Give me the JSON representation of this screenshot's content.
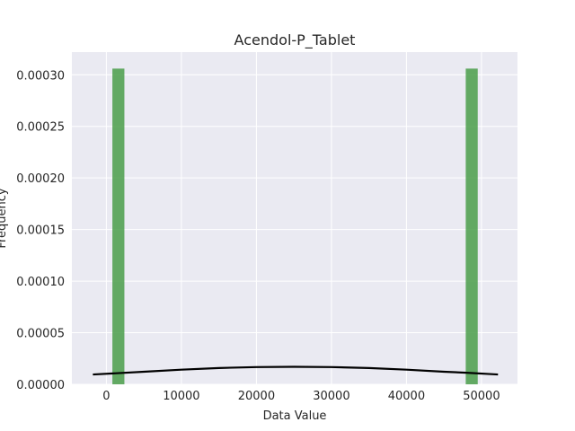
{
  "chart_data": {
    "type": "bar",
    "title": "Acendol-P_Tablet",
    "xlabel": "Data Value",
    "ylabel": "Frequency",
    "xlim": [
      -4600,
      54800
    ],
    "ylim": [
      0,
      0.000322
    ],
    "xticks": [
      0,
      10000,
      20000,
      30000,
      40000,
      50000
    ],
    "yticks": [
      0,
      5e-05,
      0.0001,
      0.00015,
      0.0002,
      0.00025,
      0.0003
    ],
    "xtick_labels": [
      "0",
      "10000",
      "20000",
      "30000",
      "40000",
      "50000"
    ],
    "ytick_labels": [
      "0.00000",
      "0.00005",
      "0.00010",
      "0.00015",
      "0.00020",
      "0.00025",
      "0.00030"
    ],
    "grid": true,
    "legend": "none",
    "background_color": "#eaeaf2",
    "grid_color": "#ffffff",
    "bar_color": "#4a9e4a",
    "line_color": "#000000",
    "bars": [
      {
        "x0": 800,
        "x1": 2400,
        "value": 0.000306
      },
      {
        "x0": 47900,
        "x1": 49500,
        "value": 0.000306
      }
    ],
    "kde_curve": {
      "x": [
        -1800,
        5000,
        10000,
        15000,
        20000,
        25000,
        30000,
        35000,
        40000,
        45000,
        48000,
        52200
      ],
      "y": [
        9.5e-06,
        1.22e-05,
        1.42e-05,
        1.58e-05,
        1.67e-05,
        1.7e-05,
        1.67e-05,
        1.58e-05,
        1.42e-05,
        1.22e-05,
        1.12e-05,
        9.5e-06
      ]
    }
  }
}
